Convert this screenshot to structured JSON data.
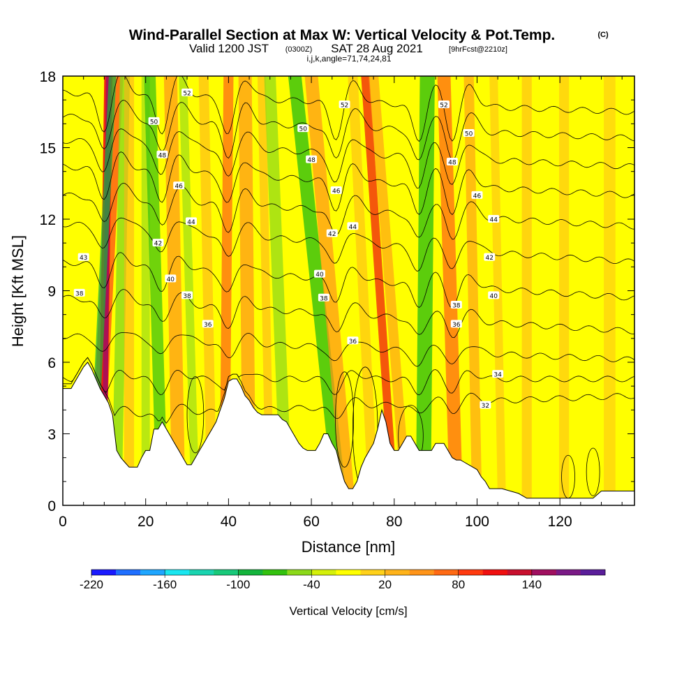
{
  "header": {
    "title_main": "Wind-Parallel Section at Max W: Vertical Velocity & Pot.Temp.",
    "title_mark": "(C)",
    "subtitle_a": "Valid 1200 JST",
    "subtitle_b": "(0300Z)",
    "subtitle_c": "SAT 28 Aug 2021",
    "subtitle_d": "[9hrFcst@2210z]",
    "subtitle_line3": "i,j,k,angle=71,74,24,81"
  },
  "chart_data": {
    "type": "heatmap",
    "xlabel": "Distance [nm]",
    "ylabel": "Height [Kft MSL]",
    "xlim": [
      0,
      138
    ],
    "ylim": [
      0,
      18
    ],
    "x_ticks": [
      0,
      20,
      40,
      60,
      80,
      100,
      120
    ],
    "y_ticks": [
      0,
      3,
      6,
      9,
      12,
      15,
      18
    ],
    "x_tick_labels": [
      "0",
      "20",
      "40",
      "60",
      "80",
      "100",
      "120"
    ],
    "y_tick_labels": [
      "0",
      "3",
      "6",
      "9",
      "12",
      "15",
      "18"
    ],
    "colorbar": {
      "title": "Vertical Velocity [cm/s]",
      "tick_labels": [
        "-220",
        "-160",
        "-100",
        "-40",
        "20",
        "80",
        "140"
      ],
      "colors": [
        "#1a1aff",
        "#1f6fff",
        "#1fa6ff",
        "#1ae6f0",
        "#1ad4b0",
        "#19c97a",
        "#14b43c",
        "#33c10f",
        "#8cd91a",
        "#d4f00a",
        "#ffff00",
        "#ffd11a",
        "#ffb31a",
        "#ff9419",
        "#ff6a14",
        "#ff3a0f",
        "#f01010",
        "#c8102e",
        "#a01060",
        "#7a1a86",
        "#5a1e9a"
      ]
    },
    "terrain": [
      [
        0,
        4.9
      ],
      [
        2,
        4.9
      ],
      [
        3,
        5.2
      ],
      [
        4,
        5.5
      ],
      [
        5,
        5.8
      ],
      [
        6,
        6.0
      ],
      [
        7,
        5.7
      ],
      [
        8,
        5.3
      ],
      [
        9,
        4.9
      ],
      [
        10,
        4.6
      ],
      [
        11,
        4.3
      ],
      [
        12,
        3.8
      ],
      [
        13,
        2.3
      ],
      [
        14,
        2.0
      ],
      [
        15,
        1.8
      ],
      [
        16,
        1.6
      ],
      [
        18,
        1.6
      ],
      [
        19,
        2.0
      ],
      [
        20,
        2.3
      ],
      [
        21,
        2.3
      ],
      [
        22,
        3.2
      ],
      [
        23,
        3.2
      ],
      [
        24,
        3.5
      ],
      [
        25,
        3.2
      ],
      [
        26,
        2.9
      ],
      [
        27,
        2.6
      ],
      [
        28,
        2.3
      ],
      [
        29,
        2.0
      ],
      [
        30,
        1.7
      ],
      [
        31,
        1.7
      ],
      [
        32,
        2.0
      ],
      [
        33,
        2.3
      ],
      [
        34,
        2.6
      ],
      [
        35,
        2.9
      ],
      [
        36,
        3.2
      ],
      [
        37,
        3.5
      ],
      [
        38,
        4.0
      ],
      [
        39,
        4.5
      ],
      [
        40,
        5.2
      ],
      [
        41,
        5.3
      ],
      [
        42,
        5.3
      ],
      [
        43,
        5.0
      ],
      [
        44,
        4.6
      ],
      [
        45,
        4.4
      ],
      [
        46,
        4.1
      ],
      [
        47,
        3.9
      ],
      [
        48,
        3.8
      ],
      [
        50,
        3.8
      ],
      [
        52,
        3.8
      ],
      [
        53,
        3.6
      ],
      [
        54,
        3.5
      ],
      [
        55,
        3.2
      ],
      [
        56,
        2.9
      ],
      [
        57,
        2.6
      ],
      [
        58,
        2.4
      ],
      [
        59,
        2.3
      ],
      [
        60,
        2.3
      ],
      [
        61,
        2.3
      ],
      [
        62,
        2.6
      ],
      [
        63,
        3.0
      ],
      [
        64,
        3.0
      ],
      [
        65,
        2.6
      ],
      [
        66,
        2.3
      ],
      [
        67,
        1.6
      ],
      [
        68,
        1.0
      ],
      [
        69,
        0.7
      ],
      [
        70,
        0.7
      ],
      [
        71,
        1.0
      ],
      [
        72,
        1.6
      ],
      [
        73,
        2.0
      ],
      [
        74,
        2.3
      ],
      [
        75,
        2.6
      ],
      [
        76,
        3.2
      ],
      [
        77,
        4.0
      ],
      [
        78,
        3.5
      ],
      [
        79,
        2.6
      ],
      [
        80,
        2.3
      ],
      [
        81,
        2.3
      ],
      [
        82,
        2.6
      ],
      [
        83,
        2.9
      ],
      [
        84,
        2.9
      ],
      [
        85,
        2.6
      ],
      [
        86,
        2.3
      ],
      [
        87,
        2.3
      ],
      [
        88,
        2.3
      ],
      [
        89,
        2.3
      ],
      [
        90,
        2.6
      ],
      [
        91,
        2.6
      ],
      [
        92,
        2.6
      ],
      [
        93,
        2.3
      ],
      [
        94,
        2.0
      ],
      [
        95,
        1.9
      ],
      [
        96,
        1.9
      ],
      [
        97,
        1.8
      ],
      [
        98,
        1.7
      ],
      [
        99,
        1.6
      ],
      [
        100,
        1.5
      ],
      [
        101,
        1.2
      ],
      [
        102,
        1.0
      ],
      [
        103,
        0.7
      ],
      [
        104,
        0.7
      ],
      [
        106,
        0.7
      ],
      [
        108,
        0.6
      ],
      [
        110,
        0.5
      ],
      [
        112,
        0.3
      ],
      [
        116,
        0.3
      ],
      [
        122,
        0.3
      ],
      [
        126,
        0.3
      ],
      [
        128,
        0.3
      ],
      [
        130,
        0.6
      ],
      [
        132,
        0.6
      ],
      [
        134,
        0.6
      ],
      [
        136,
        0.6
      ],
      [
        138,
        0.6
      ]
    ],
    "bands": [
      {
        "x": 8,
        "x_top": 13,
        "half_width": 1.6,
        "color": "#ff6a14",
        "opacity": 0.9
      },
      {
        "x": 9.5,
        "x_top": 11,
        "half_width": 1.0,
        "color": "#f01010",
        "opacity": 0.9
      },
      {
        "x": 10,
        "x_top": 11,
        "half_width": 0.6,
        "color": "#a01060",
        "opacity": 0.85
      },
      {
        "x": 7,
        "x_top": 12,
        "half_width": 0.9,
        "color": "#14b43c",
        "opacity": 0.7
      },
      {
        "x": 13,
        "x_top": 15,
        "half_width": 1.2,
        "color": "#8cd91a",
        "opacity": 0.8
      },
      {
        "x": 16,
        "x_top": 16,
        "half_width": 1.2,
        "color": "#ffb31a",
        "opacity": 0.6
      },
      {
        "x": 20,
        "x_top": 20,
        "half_width": 1.0,
        "color": "#8cd91a",
        "opacity": 0.6
      },
      {
        "x": 24,
        "x_top": 21,
        "half_width": 1.4,
        "color": "#33c10f",
        "opacity": 0.7
      },
      {
        "x": 28,
        "x_top": 26,
        "half_width": 1.6,
        "color": "#ff9419",
        "opacity": 0.7
      },
      {
        "x": 32,
        "x_top": 29,
        "half_width": 1.0,
        "color": "#8cd91a",
        "opacity": 0.6
      },
      {
        "x": 36,
        "x_top": 34,
        "half_width": 1.2,
        "color": "#ffb31a",
        "opacity": 0.6
      },
      {
        "x": 39,
        "x_top": 40,
        "half_width": 1.2,
        "color": "#ff6a14",
        "opacity": 0.75
      },
      {
        "x": 45,
        "x_top": 44,
        "half_width": 1.6,
        "color": "#ff9419",
        "opacity": 0.7
      },
      {
        "x": 50,
        "x_top": 48,
        "half_width": 1.0,
        "color": "#ffb31a",
        "opacity": 0.6
      },
      {
        "x": 54,
        "x_top": 50,
        "half_width": 1.4,
        "color": "#8cd91a",
        "opacity": 0.7
      },
      {
        "x": 67,
        "x_top": 56,
        "half_width": 1.6,
        "color": "#33c10f",
        "opacity": 0.8
      },
      {
        "x": 69,
        "x_top": 60,
        "half_width": 1.6,
        "color": "#ff9419",
        "opacity": 0.7
      },
      {
        "x": 75,
        "x_top": 70,
        "half_width": 1.2,
        "color": "#ffb31a",
        "opacity": 0.55
      },
      {
        "x": 80,
        "x_top": 73,
        "half_width": 1.0,
        "color": "#f01010",
        "opacity": 0.7
      },
      {
        "x": 83,
        "x_top": 75,
        "half_width": 1.2,
        "color": "#ff9419",
        "opacity": 0.6
      },
      {
        "x": 87,
        "x_top": 88,
        "half_width": 1.8,
        "color": "#33c10f",
        "opacity": 0.8
      },
      {
        "x": 95,
        "x_top": 92,
        "half_width": 1.6,
        "color": "#ff6a14",
        "opacity": 0.75
      },
      {
        "x": 100,
        "x_top": 98,
        "half_width": 1.2,
        "color": "#ff9419",
        "opacity": 0.6
      },
      {
        "x": 106,
        "x_top": 104,
        "half_width": 1.0,
        "color": "#ffb31a",
        "opacity": 0.5
      },
      {
        "x": 112,
        "x_top": 112,
        "half_width": 1.2,
        "color": "#ffb31a",
        "opacity": 0.55
      },
      {
        "x": 121,
        "x_top": 121,
        "half_width": 1.2,
        "color": "#ffb31a",
        "opacity": 0.5
      },
      {
        "x": 132,
        "x_top": 132,
        "half_width": 1.4,
        "color": "#ffb31a",
        "opacity": 0.45
      }
    ],
    "contours": [
      {
        "level": 32,
        "y0": 3.7,
        "y1": 4.6
      },
      {
        "level": 34,
        "y0": 5.3,
        "y1": 5.3
      },
      {
        "level": 36,
        "y0": 7.1,
        "y1": 6.1
      },
      {
        "level": 38,
        "y0": 8.7,
        "y1": 7.3
      },
      {
        "level": 40,
        "y0": 10.2,
        "y1": 8.7
      },
      {
        "level": 42,
        "y0": 11.8,
        "y1": 10.2
      },
      {
        "level": 44,
        "y0": 13.0,
        "y1": 11.7
      },
      {
        "level": 46,
        "y0": 14.2,
        "y1": 13.0
      },
      {
        "level": 48,
        "y0": 15.3,
        "y1": 14.2
      },
      {
        "level": 50,
        "y0": 16.3,
        "y1": 15.4
      },
      {
        "level": 52,
        "y0": 17.3,
        "y1": 16.5
      }
    ],
    "contour_labels": [
      {
        "text": "52",
        "x": 30,
        "y": 17.3
      },
      {
        "text": "50",
        "x": 22,
        "y": 16.1
      },
      {
        "text": "48",
        "x": 24,
        "y": 14.7
      },
      {
        "text": "46",
        "x": 28,
        "y": 13.4
      },
      {
        "text": "44",
        "x": 31,
        "y": 11.9
      },
      {
        "text": "42",
        "x": 23,
        "y": 11.0
      },
      {
        "text": "40",
        "x": 26,
        "y": 9.5
      },
      {
        "text": "38",
        "x": 30,
        "y": 8.8
      },
      {
        "text": "36",
        "x": 35,
        "y": 7.6
      },
      {
        "text": "43",
        "x": 5,
        "y": 10.4
      },
      {
        "text": "38",
        "x": 4,
        "y": 8.9
      },
      {
        "text": "52",
        "x": 68,
        "y": 16.8
      },
      {
        "text": "50",
        "x": 58,
        "y": 15.8
      },
      {
        "text": "48",
        "x": 60,
        "y": 14.5
      },
      {
        "text": "46",
        "x": 66,
        "y": 13.2
      },
      {
        "text": "44",
        "x": 70,
        "y": 11.7
      },
      {
        "text": "42",
        "x": 65,
        "y": 11.4
      },
      {
        "text": "40",
        "x": 62,
        "y": 9.7
      },
      {
        "text": "38",
        "x": 63,
        "y": 8.7
      },
      {
        "text": "36",
        "x": 70,
        "y": 6.9
      },
      {
        "text": "52",
        "x": 92,
        "y": 16.8
      },
      {
        "text": "50",
        "x": 98,
        "y": 15.6
      },
      {
        "text": "48",
        "x": 94,
        "y": 14.4
      },
      {
        "text": "46",
        "x": 100,
        "y": 13.0
      },
      {
        "text": "44",
        "x": 104,
        "y": 12.0
      },
      {
        "text": "42",
        "x": 103,
        "y": 10.4
      },
      {
        "text": "40",
        "x": 104,
        "y": 8.8
      },
      {
        "text": "38",
        "x": 95,
        "y": 8.4
      },
      {
        "text": "36",
        "x": 95,
        "y": 7.6
      },
      {
        "text": "34",
        "x": 105,
        "y": 5.5
      },
      {
        "text": "32",
        "x": 102,
        "y": 4.2
      }
    ]
  }
}
